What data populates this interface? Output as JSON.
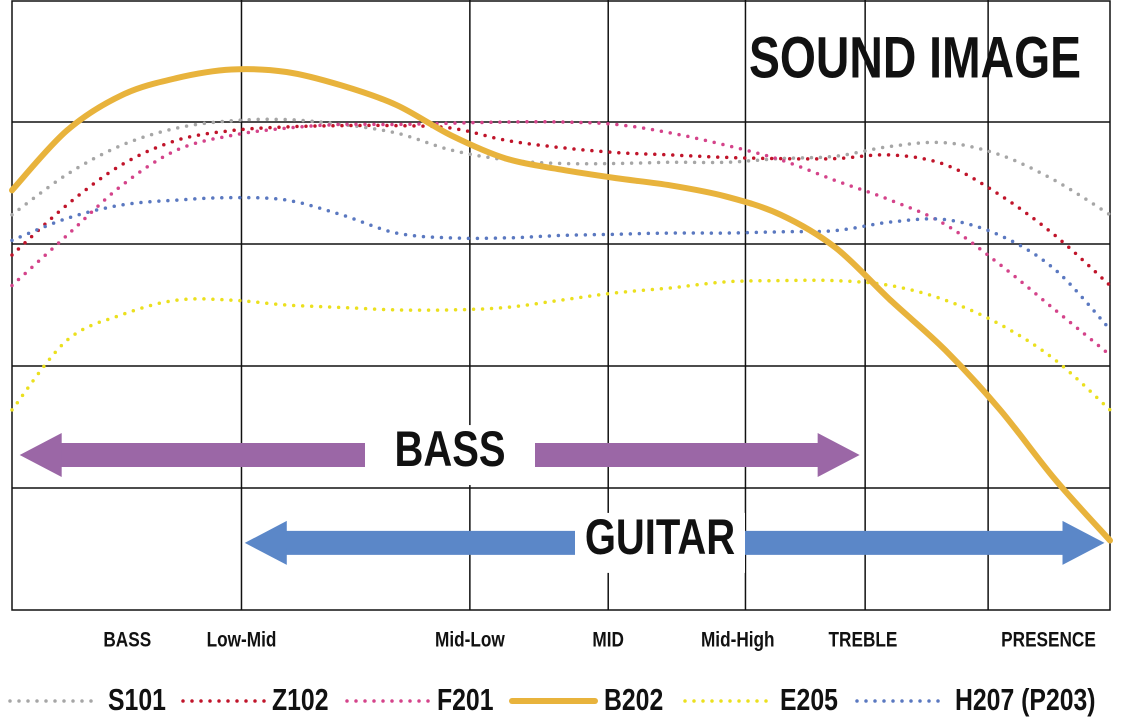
{
  "chart_data": {
    "type": "line",
    "title": "SOUND IMAGE",
    "title_color": "#c8102e",
    "x": [
      0,
      5,
      10,
      15,
      20,
      25,
      30,
      35,
      40,
      45,
      50,
      55,
      60,
      65,
      70,
      75,
      80,
      85,
      90,
      95,
      100
    ],
    "xlim": [
      0,
      100
    ],
    "ylim": [
      0,
      5
    ],
    "xticks": [
      {
        "value": 10.5,
        "label": "BASS"
      },
      {
        "value": 20.9,
        "label": "Low-Mid"
      },
      {
        "value": 41.7,
        "label": "Mid-Low"
      },
      {
        "value": 54.3,
        "label": "MID"
      },
      {
        "value": 66.1,
        "label": "Mid-High"
      },
      {
        "value": 77.5,
        "label": "TREBLE"
      },
      {
        "value": 94.4,
        "label": "PRESENCE"
      }
    ],
    "xgrid": [
      20.9,
      41.7,
      54.3,
      66.8,
      77.7,
      88.9
    ],
    "ygrid": [
      1,
      2,
      3,
      4
    ],
    "grid": true,
    "series": [
      {
        "name": "S101",
        "color": "#a6a6a6",
        "style": "dotted",
        "values": [
          3.24,
          3.57,
          3.81,
          3.95,
          4.01,
          4.02,
          3.98,
          3.91,
          3.77,
          3.69,
          3.66,
          3.66,
          3.67,
          3.67,
          3.7,
          3.72,
          3.8,
          3.83,
          3.73,
          3.52,
          3.24
        ]
      },
      {
        "name": "Z102",
        "color": "#c0142a",
        "style": "dotted",
        "values": [
          2.91,
          3.32,
          3.65,
          3.85,
          3.93,
          3.96,
          3.97,
          3.97,
          3.95,
          3.85,
          3.79,
          3.75,
          3.73,
          3.71,
          3.7,
          3.7,
          3.73,
          3.65,
          3.4,
          3.07,
          2.66
        ]
      },
      {
        "name": "F201",
        "color": "#d4438a",
        "style": "dotted",
        "values": [
          2.66,
          3.07,
          3.48,
          3.77,
          3.89,
          3.95,
          3.98,
          3.98,
          3.99,
          4.0,
          4.0,
          3.98,
          3.91,
          3.81,
          3.69,
          3.52,
          3.36,
          3.16,
          2.83,
          2.46,
          2.09
        ]
      },
      {
        "name": "B202",
        "color": "#e8b33c",
        "style": "solid",
        "values": [
          3.44,
          3.93,
          4.22,
          4.36,
          4.43,
          4.41,
          4.3,
          4.14,
          3.89,
          3.7,
          3.61,
          3.54,
          3.48,
          3.39,
          3.24,
          2.97,
          2.54,
          2.13,
          1.64,
          1.07,
          0.57
        ]
      },
      {
        "name": "E205",
        "color": "#ebe01e",
        "style": "dotted",
        "values": [
          1.64,
          2.21,
          2.42,
          2.54,
          2.54,
          2.5,
          2.48,
          2.46,
          2.46,
          2.48,
          2.54,
          2.6,
          2.64,
          2.69,
          2.7,
          2.7,
          2.66,
          2.54,
          2.34,
          2.05,
          1.64
        ]
      },
      {
        "name": "H207 (P203)",
        "color": "#5a78c0",
        "style": "dotted",
        "values": [
          3.03,
          3.21,
          3.32,
          3.36,
          3.38,
          3.36,
          3.24,
          3.09,
          3.05,
          3.05,
          3.07,
          3.08,
          3.09,
          3.09,
          3.1,
          3.11,
          3.18,
          3.2,
          3.07,
          2.79,
          2.3
        ]
      }
    ],
    "annotations": [
      {
        "text": "BASS",
        "color": "#9b67a6",
        "range": [
          0.7,
          77.2
        ],
        "y": 1.27
      },
      {
        "text": "GUITAR",
        "color": "#5b87c8",
        "range": [
          21.2,
          99.5
        ],
        "y": 0.55
      }
    ]
  }
}
